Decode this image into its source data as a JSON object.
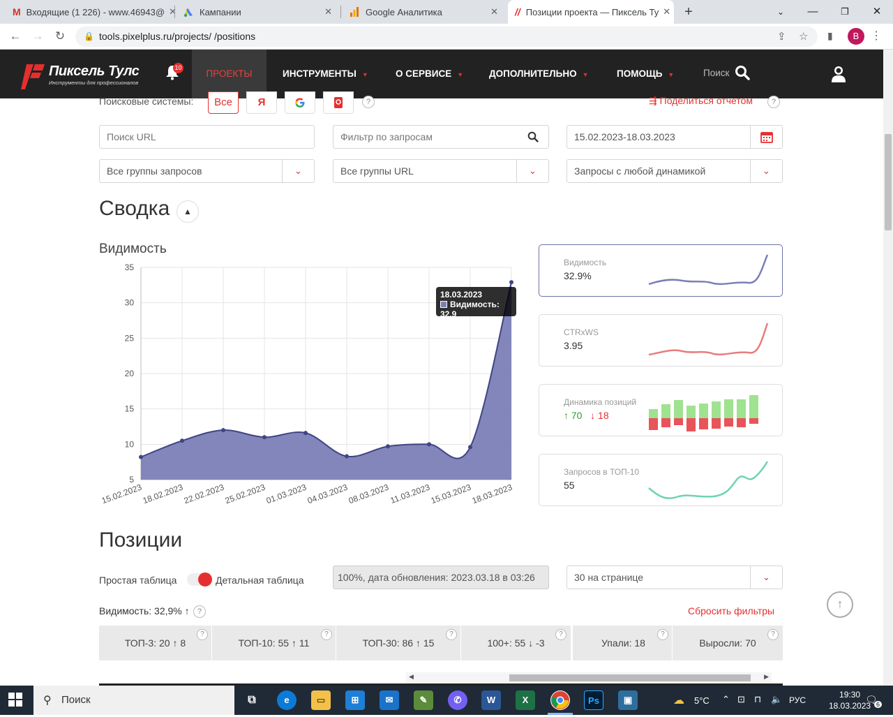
{
  "browser": {
    "tabs": [
      {
        "title": "Входящие (1 226) - www.46943@",
        "icon": "gmail-icon"
      },
      {
        "title": "Кампании",
        "icon": "google-ads-icon"
      },
      {
        "title": "Google Аналитика",
        "icon": "analytics-icon"
      },
      {
        "title": "Позиции проекта — Пиксель Ту",
        "icon": "pixel-tools-icon"
      }
    ],
    "url": "tools.pixelplus.ru/projects/        /positions",
    "profile_initial": "B"
  },
  "header": {
    "logo_title": "Пиксель Тулс",
    "logo_subtitle": "Инструменты для профессионалов",
    "notifications": "10",
    "menu": [
      "ПРОЕКТЫ",
      "ИНСТРУМЕНТЫ",
      "О СЕРВИСЕ",
      "ДОПОЛНИТЕЛЬНО",
      "ПОМОЩЬ"
    ],
    "search_label": "Поиск"
  },
  "filters": {
    "search_engines_label": "Поисковые системы:",
    "all_label": "Все",
    "yandex_label": "Я",
    "share_label": "Поделиться отчетом",
    "url_search_placeholder": "Поиск URL",
    "query_filter_placeholder": "Фильтр по запросам",
    "date_range": "15.02.2023-18.03.2023",
    "query_groups": "Все группы запросов",
    "url_groups": "Все группы URL",
    "dynamics": "Запросы с любой динамикой"
  },
  "summary": {
    "title": "Сводка",
    "visibility_title": "Видимость",
    "tooltip_date": "18.03.2023",
    "tooltip_value": "Видимость: 32.9",
    "metrics": [
      {
        "label": "Видимость",
        "value": "32.9%"
      },
      {
        "label": "CTRxWS",
        "value": "3.95"
      },
      {
        "label": "Динамика позиций",
        "up": "↑ 70",
        "down": "↓ 18"
      },
      {
        "label": "Запросов в ТОП-10",
        "value": "55"
      }
    ]
  },
  "chart_data": {
    "type": "area",
    "x": [
      "15.02.2023",
      "18.02.2023",
      "22.02.2023",
      "25.02.2023",
      "01.03.2023",
      "04.03.2023",
      "08.03.2023",
      "11.03.2023",
      "15.03.2023",
      "18.03.2023"
    ],
    "series": [
      {
        "name": "Видимость",
        "values": [
          8.2,
          10.5,
          12.0,
          11.0,
          11.6,
          8.3,
          9.7,
          10.0,
          9.6,
          32.9
        ]
      }
    ],
    "ylim": [
      5,
      35
    ],
    "yticks": [
      "5",
      "10",
      "15",
      "20",
      "25",
      "30",
      "35"
    ],
    "grid": true,
    "color": "#6c71a8"
  },
  "positions": {
    "title": "Позиции",
    "simple_table": "Простая таблица",
    "detailed_table": "Детальная таблица",
    "status": "100%, дата обновления: 2023.03.18 в 03:26",
    "per_page": "30 на странице",
    "visibility_summary": "Видимость: 32,9% ↑",
    "reset_filters": "Сбросить фильтры",
    "stats": [
      "ТОП-3: 20 ↑ 8",
      "ТОП-10: 55 ↑ 11",
      "ТОП-30: 86 ↑ 15",
      "100+: 55 ↓ -3",
      "Упали: 18",
      "Выросли: 70"
    ]
  },
  "taskbar": {
    "search": "Поиск",
    "temperature": "5°C",
    "lang": "РУС",
    "time": "19:30",
    "date": "18.03.2023",
    "notifications": "6"
  }
}
